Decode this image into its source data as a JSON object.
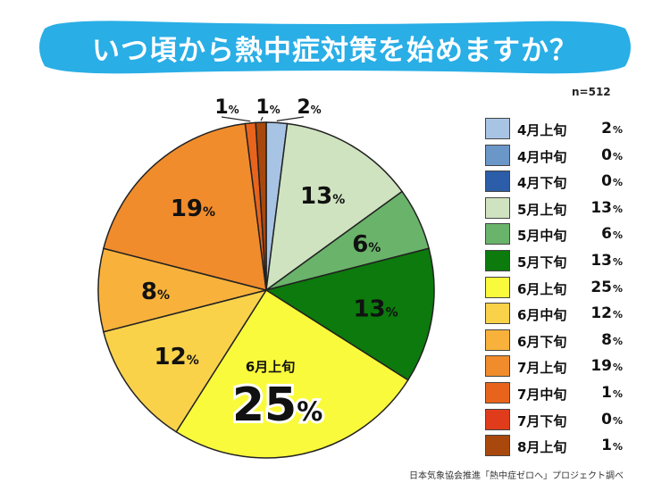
{
  "title": "いつ頃から熱中症対策を始めますか？",
  "sample_size": "n=512",
  "source": "日本気象協会推進「熱中症ゼロへ」プロジェクト調べ",
  "pct_unit": "%",
  "chart_data": {
    "type": "pie",
    "title": "いつ頃から熱中症対策を始めますか？",
    "categories": [
      "4月上旬",
      "4月中旬",
      "4月下旬",
      "5月上旬",
      "5月中旬",
      "5月下旬",
      "6月上旬",
      "6月中旬",
      "6月下旬",
      "7月上旬",
      "7月中旬",
      "7月下旬",
      "8月上旬"
    ],
    "values": [
      2,
      0,
      0,
      13,
      6,
      13,
      25,
      12,
      8,
      19,
      1,
      0,
      1
    ],
    "colors": [
      "#a8c4e4",
      "#6b96c8",
      "#2b5da8",
      "#cfe3c0",
      "#6ab36a",
      "#0c7a0c",
      "#fafa3c",
      "#fad24a",
      "#f8b23c",
      "#f08c2c",
      "#e8641c",
      "#e03c1c",
      "#a8480c"
    ],
    "highlight": {
      "category": "6月上旬",
      "label": "6月上旬"
    },
    "legend_position": "right"
  }
}
